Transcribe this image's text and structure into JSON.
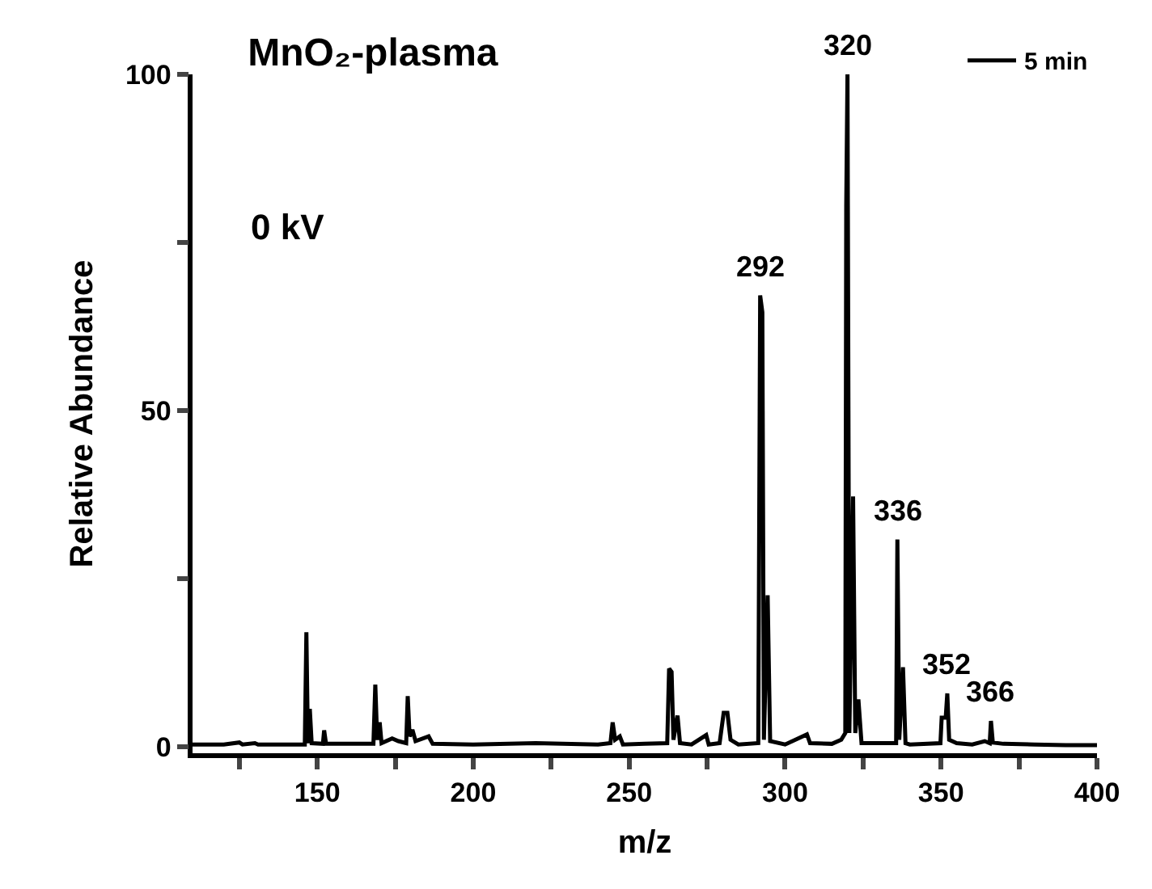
{
  "chart_data": {
    "type": "line",
    "title": "MnO₂-plasma",
    "xlabel": "m/z",
    "ylabel": "Relative Abundance",
    "x": [
      110,
      120,
      125,
      126,
      130,
      131,
      140,
      146,
      146.5,
      147,
      147.6,
      148.2,
      151.8,
      152.2,
      152.8,
      160,
      168,
      168.6,
      169.2,
      170,
      170.6,
      174,
      176,
      178.5,
      179,
      179.6,
      180.5,
      181.5,
      185.7,
      187,
      200,
      220,
      240,
      244,
      244.7,
      245.5,
      247,
      248,
      255,
      262.2,
      262.8,
      263.6,
      264.2,
      265.5,
      266.3,
      270,
      274.7,
      275.5,
      279,
      280.3,
      281.5,
      282.5,
      285,
      291.4,
      292,
      292.7,
      293.2,
      294.4,
      295.2,
      300,
      307,
      308,
      315,
      318,
      319.3,
      319.6,
      320,
      320.6,
      321.8,
      322.5,
      323.5,
      324.5,
      335.6,
      336,
      336.6,
      337.8,
      338.6,
      340,
      349.8,
      350.2,
      351.5,
      352,
      352.6,
      355,
      360,
      364,
      365.6,
      366,
      366.6,
      370,
      380,
      390,
      400
    ],
    "series": [
      {
        "name": "5 min",
        "color": "#000000",
        "values": [
          0.3,
          0.3,
          0.6,
          0.3,
          0.5,
          0.3,
          0.3,
          0.3,
          17,
          0.5,
          5.6,
          0.5,
          0.4,
          2.4,
          0.4,
          0.4,
          0.4,
          9.2,
          1,
          3.6,
          0.5,
          1.2,
          0.8,
          0.5,
          7.5,
          1.5,
          2.5,
          0.8,
          1.5,
          0.4,
          0.3,
          0.5,
          0.3,
          0.5,
          3.6,
          1,
          1.5,
          0.3,
          0.4,
          0.5,
          11.6,
          11.1,
          1,
          4.6,
          0.5,
          0.3,
          1.7,
          0.3,
          0.5,
          5,
          5,
          1,
          0.3,
          0.5,
          67.1,
          64.6,
          1,
          22.5,
          0.8,
          0.3,
          1.8,
          0.5,
          0.4,
          1,
          2,
          80.4,
          100,
          2,
          37.2,
          2,
          7,
          0.5,
          0.5,
          30.8,
          1,
          11.8,
          0.5,
          0.3,
          0.5,
          4.3,
          4.3,
          7.9,
          1,
          0.5,
          0.3,
          0.8,
          0.5,
          3.8,
          0.6,
          0.4,
          0.3,
          0.2,
          0.2
        ]
      }
    ],
    "xlim": [
      110,
      400
    ],
    "xticks": [
      {
        "value": 125,
        "label": null
      },
      150,
      {
        "value": 175,
        "label": null
      },
      200,
      {
        "value": 225,
        "label": null
      },
      250,
      {
        "value": 275,
        "label": null
      },
      300,
      {
        "value": 325,
        "label": null
      },
      350,
      {
        "value": 375,
        "label": null
      },
      400
    ],
    "ylim": [
      -1,
      100
    ],
    "yticks": [
      0,
      {
        "value": 25,
        "label": null
      },
      50,
      {
        "value": 75,
        "label": null
      },
      100
    ],
    "annotations": [
      "0 kV",
      {
        "text": "292",
        "x": 292,
        "y": 67.1
      },
      {
        "text": "320",
        "x": 320,
        "y": 100
      },
      {
        "text": "336",
        "x": 336,
        "y": 30.8
      },
      {
        "text": "352",
        "x": 352,
        "y": 7.9
      },
      {
        "text": "366",
        "x": 366,
        "y": 3.8
      }
    ],
    "legend": "top right",
    "marker": "none",
    "line_style": "solid"
  }
}
